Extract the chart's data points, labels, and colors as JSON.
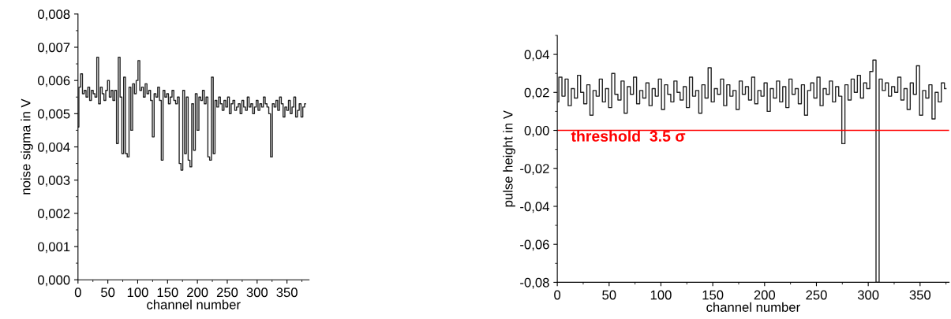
{
  "chart_data": [
    {
      "type": "step",
      "xlabel": "channel number",
      "ylabel": "noise sigma in V",
      "xlim": [
        0,
        387
      ],
      "xticks": [
        0,
        50,
        100,
        150,
        200,
        250,
        300,
        350
      ],
      "ylim": [
        0,
        0.008
      ],
      "yticks": [
        {
          "value": 0,
          "label": "0,000"
        },
        {
          "value": 0.001,
          "label": "0,001"
        },
        {
          "value": 0.002,
          "label": "0,002"
        },
        {
          "value": 0.003,
          "label": "0,003"
        },
        {
          "value": 0.004,
          "label": "0,004"
        },
        {
          "value": 0.005,
          "label": "0,005"
        },
        {
          "value": 0.006,
          "label": "0,006"
        },
        {
          "value": 0.007,
          "label": "0,007"
        },
        {
          "value": 0.008,
          "label": "0,008"
        }
      ],
      "grid": false,
      "legend": false,
      "series": [
        {
          "color": "#222222",
          "x": [
            0,
            3,
            6,
            9,
            12,
            15,
            18,
            21,
            24,
            27,
            30,
            33,
            36,
            39,
            42,
            45,
            48,
            51,
            54,
            57,
            60,
            63,
            66,
            69,
            72,
            75,
            78,
            81,
            84,
            87,
            90,
            93,
            96,
            99,
            102,
            105,
            108,
            111,
            114,
            117,
            120,
            123,
            126,
            129,
            132,
            135,
            138,
            141,
            144,
            147,
            150,
            153,
            156,
            159,
            162,
            165,
            168,
            171,
            174,
            177,
            180,
            183,
            186,
            189,
            192,
            195,
            198,
            201,
            204,
            207,
            210,
            213,
            216,
            219,
            222,
            225,
            228,
            231,
            234,
            237,
            240,
            243,
            246,
            249,
            252,
            255,
            258,
            261,
            264,
            267,
            270,
            273,
            276,
            279,
            282,
            285,
            288,
            291,
            294,
            297,
            300,
            303,
            306,
            309,
            312,
            315,
            318,
            321,
            324,
            327,
            330,
            333,
            336,
            339,
            342,
            345,
            348,
            351,
            354,
            357,
            360,
            363,
            366,
            369,
            372,
            375,
            378,
            381
          ],
          "values": [
            0.0046,
            0.0058,
            0.0062,
            0.0056,
            0.0057,
            0.0055,
            0.0058,
            0.0054,
            0.0057,
            0.0056,
            0.0055,
            0.0067,
            0.0053,
            0.0058,
            0.0056,
            0.0054,
            0.0057,
            0.006,
            0.0055,
            0.0057,
            0.0054,
            0.0057,
            0.0041,
            0.0067,
            0.0055,
            0.0038,
            0.0061,
            0.0038,
            0.0037,
            0.0058,
            0.0045,
            0.0059,
            0.0056,
            0.006,
            0.0066,
            0.0057,
            0.0058,
            0.0055,
            0.0059,
            0.0056,
            0.0057,
            0.0054,
            0.0043,
            0.0056,
            0.0055,
            0.0058,
            0.0054,
            0.0036,
            0.0057,
            0.0055,
            0.0056,
            0.0053,
            0.0055,
            0.0057,
            0.0054,
            0.0053,
            0.0055,
            0.0035,
            0.0033,
            0.0057,
            0.0038,
            0.0055,
            0.0036,
            0.0034,
            0.0053,
            0.0039,
            0.0056,
            0.0045,
            0.0055,
            0.0054,
            0.0057,
            0.0053,
            0.0055,
            0.0037,
            0.0036,
            0.0061,
            0.0038,
            0.0054,
            0.0052,
            0.0055,
            0.0053,
            0.0051,
            0.0054,
            0.0052,
            0.0055,
            0.005,
            0.0053,
            0.0054,
            0.0051,
            0.0052,
            0.0053,
            0.005,
            0.0054,
            0.0052,
            0.0051,
            0.0055,
            0.0052,
            0.0053,
            0.005,
            0.0052,
            0.0054,
            0.0051,
            0.0053,
            0.0052,
            0.0055,
            0.0053,
            0.0052,
            0.005,
            0.0037,
            0.0053,
            0.0052,
            0.0054,
            0.0051,
            0.0055,
            0.0053,
            0.0049,
            0.0052,
            0.0051,
            0.0054,
            0.005,
            0.0052,
            0.0055,
            0.0049,
            0.0051,
            0.0053,
            0.0049,
            0.0052,
            0.0053
          ]
        }
      ]
    },
    {
      "type": "step",
      "xlabel": "channel number",
      "ylabel": "pulse height in V",
      "xlim": [
        0,
        378
      ],
      "xticks": [
        0,
        50,
        100,
        150,
        200,
        250,
        300,
        350
      ],
      "ylim": [
        -0.08,
        0.05
      ],
      "yticks": [
        {
          "value": -0.08,
          "label": "-0,08"
        },
        {
          "value": -0.06,
          "label": "-0,06"
        },
        {
          "value": -0.04,
          "label": "-0,04"
        },
        {
          "value": -0.02,
          "label": "-0,02"
        },
        {
          "value": 0,
          "label": "0,00"
        },
        {
          "value": 0.02,
          "label": "0,02"
        },
        {
          "value": 0.04,
          "label": "0,04"
        }
      ],
      "grid": false,
      "legend": false,
      "ref_lines": [
        {
          "axis": "y",
          "value": 0,
          "label": "threshold  3.5 σ",
          "color": "#ff0000"
        }
      ],
      "series": [
        {
          "color": "#222222",
          "x": [
            0,
            3,
            6,
            9,
            12,
            15,
            18,
            21,
            24,
            27,
            30,
            33,
            36,
            39,
            42,
            45,
            48,
            51,
            54,
            57,
            60,
            63,
            66,
            69,
            72,
            75,
            78,
            81,
            84,
            87,
            90,
            93,
            96,
            99,
            102,
            105,
            108,
            111,
            114,
            117,
            120,
            123,
            126,
            129,
            132,
            135,
            138,
            141,
            144,
            147,
            150,
            153,
            156,
            159,
            162,
            165,
            168,
            171,
            174,
            177,
            180,
            183,
            186,
            189,
            192,
            195,
            198,
            201,
            204,
            207,
            210,
            213,
            216,
            219,
            222,
            225,
            228,
            231,
            234,
            237,
            240,
            243,
            246,
            249,
            252,
            255,
            258,
            261,
            264,
            267,
            270,
            273,
            276,
            279,
            282,
            285,
            288,
            291,
            294,
            297,
            300,
            303,
            306,
            309,
            312,
            315,
            318,
            321,
            324,
            327,
            330,
            333,
            336,
            339,
            342,
            345,
            348,
            351,
            354,
            357,
            360,
            363,
            366,
            369,
            372,
            375
          ],
          "values": [
            0.015,
            0.028,
            0.018,
            0.027,
            0.013,
            0.022,
            0.017,
            0.029,
            0.02,
            0.014,
            0.024,
            0.008,
            0.021,
            0.018,
            0.027,
            0.015,
            0.022,
            0.012,
            0.03,
            0.019,
            0.016,
            0.026,
            0.009,
            0.023,
            0.019,
            0.028,
            0.014,
            0.021,
            0.017,
            0.025,
            0.013,
            0.022,
            0.018,
            0.027,
            0.011,
            0.024,
            0.019,
            0.015,
            0.026,
            0.02,
            0.016,
            0.023,
            0.012,
            0.028,
            0.018,
            0.021,
            0.009,
            0.024,
            0.017,
            0.033,
            0.015,
            0.022,
            0.019,
            0.027,
            0.013,
            0.024,
            0.018,
            0.021,
            0.011,
            0.026,
            0.019,
            0.023,
            0.016,
            0.028,
            0.014,
            0.021,
            0.018,
            0.025,
            0.01,
            0.022,
            0.017,
            0.026,
            0.015,
            0.023,
            0.012,
            0.027,
            0.019,
            0.022,
            0.014,
            0.024,
            0.008,
            0.021,
            0.025,
            0.017,
            0.028,
            0.013,
            0.022,
            0.019,
            0.026,
            0.015,
            0.023,
            0.018,
            -0.007,
            0.024,
            0.016,
            0.027,
            0.02,
            0.029,
            0.017,
            0.025,
            0.022,
            0.031,
            0.037,
            -0.08,
            0.027,
            0.021,
            0.025,
            0.018,
            0.023,
            0.02,
            0.028,
            0.016,
            0.022,
            0.011,
            0.025,
            0.019,
            0.034,
            0.008,
            0.021,
            0.017,
            0.024,
            0.006,
            0.02,
            0.015,
            0.025,
            0.022
          ]
        }
      ]
    }
  ]
}
